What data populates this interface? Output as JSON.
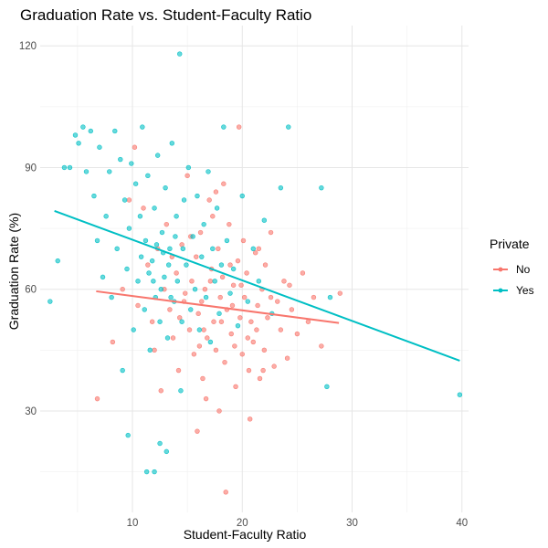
{
  "chart_data": {
    "type": "scatter",
    "title": "Graduation Rate vs. Student-Faculty Ratio",
    "xlabel": "Student-Faculty Ratio",
    "ylabel": "Graduation Rate (%)",
    "xlim": [
      1.6,
      40.6
    ],
    "ylim": [
      5,
      125
    ],
    "x_ticks": [
      10,
      20,
      30,
      40
    ],
    "y_ticks": [
      30,
      60,
      90,
      120
    ],
    "x_tick_labels": [
      "10",
      "20",
      "30",
      "40"
    ],
    "y_tick_labels": [
      "30",
      "60",
      "90",
      "120"
    ],
    "grid": true,
    "legend": {
      "title": "Private",
      "position": "right"
    },
    "series": [
      {
        "name": "No",
        "color": "#F8766D",
        "trend": {
          "x": [
            6.7,
            28.8
          ],
          "y": [
            59.5,
            51.7
          ]
        },
        "points": [
          [
            6.8,
            33
          ],
          [
            8.2,
            47
          ],
          [
            9.1,
            60
          ],
          [
            9.7,
            82
          ],
          [
            10.2,
            95
          ],
          [
            10.5,
            56
          ],
          [
            11.0,
            80
          ],
          [
            11.4,
            66
          ],
          [
            11.8,
            52
          ],
          [
            12.0,
            45
          ],
          [
            12.3,
            70
          ],
          [
            12.6,
            35
          ],
          [
            12.9,
            60
          ],
          [
            13.1,
            76
          ],
          [
            13.4,
            55
          ],
          [
            13.7,
            48
          ],
          [
            14.0,
            64
          ],
          [
            14.2,
            40
          ],
          [
            14.5,
            71
          ],
          [
            14.7,
            57
          ],
          [
            15.0,
            88
          ],
          [
            15.2,
            50
          ],
          [
            15.4,
            62
          ],
          [
            15.6,
            44
          ],
          [
            15.8,
            68
          ],
          [
            16.0,
            54
          ],
          [
            16.2,
            74
          ],
          [
            16.4,
            38
          ],
          [
            16.6,
            60
          ],
          [
            16.8,
            48
          ],
          [
            17.0,
            82
          ],
          [
            17.2,
            65
          ],
          [
            17.4,
            52
          ],
          [
            17.6,
            45
          ],
          [
            17.8,
            70
          ],
          [
            18.0,
            58
          ],
          [
            18.2,
            63
          ],
          [
            18.4,
            42
          ],
          [
            18.6,
            55
          ],
          [
            18.8,
            76
          ],
          [
            19.0,
            49
          ],
          [
            19.2,
            61
          ],
          [
            19.4,
            36
          ],
          [
            19.6,
            67
          ],
          [
            19.8,
            53
          ],
          [
            20.0,
            44
          ],
          [
            20.2,
            58
          ],
          [
            20.4,
            64
          ],
          [
            20.6,
            40
          ],
          [
            20.8,
            52
          ],
          [
            21.0,
            47
          ],
          [
            21.2,
            69
          ],
          [
            21.4,
            56
          ],
          [
            21.6,
            38
          ],
          [
            21.8,
            60
          ],
          [
            22.0,
            45
          ],
          [
            22.3,
            53
          ],
          [
            22.6,
            74
          ],
          [
            22.9,
            41
          ],
          [
            23.2,
            57
          ],
          [
            23.5,
            50
          ],
          [
            23.8,
            62
          ],
          [
            24.1,
            43
          ],
          [
            24.5,
            55
          ],
          [
            25.0,
            49
          ],
          [
            25.5,
            64
          ],
          [
            26.0,
            52
          ],
          [
            26.5,
            58
          ],
          [
            27.2,
            46
          ],
          [
            28.9,
            59
          ],
          [
            16.1,
            46
          ],
          [
            17.3,
            78
          ],
          [
            18.5,
            10
          ],
          [
            19.7,
            100
          ],
          [
            15.9,
            25
          ],
          [
            16.7,
            33
          ],
          [
            17.9,
            30
          ],
          [
            18.3,
            86
          ],
          [
            20.7,
            28
          ],
          [
            21.9,
            40
          ],
          [
            13.6,
            68
          ],
          [
            14.8,
            59
          ],
          [
            16.3,
            57
          ],
          [
            17.1,
            62
          ],
          [
            18.9,
            66
          ],
          [
            19.3,
            46
          ],
          [
            20.1,
            72
          ],
          [
            21.3,
            50
          ],
          [
            22.1,
            66
          ],
          [
            19.1,
            56
          ],
          [
            17.6,
            84
          ],
          [
            20.5,
            48
          ],
          [
            22.6,
            58
          ],
          [
            24.3,
            61
          ],
          [
            15.3,
            73
          ],
          [
            16.5,
            50
          ],
          [
            18.1,
            52
          ],
          [
            19.9,
            61
          ],
          [
            21.5,
            70
          ],
          [
            14.3,
            53
          ]
        ]
      },
      {
        "name": "Yes",
        "color": "#00BFC4",
        "trend": {
          "x": [
            2.9,
            39.8
          ],
          "y": [
            79.3,
            42.4
          ]
        },
        "points": [
          [
            2.5,
            57
          ],
          [
            3.2,
            67
          ],
          [
            3.8,
            90
          ],
          [
            4.3,
            90
          ],
          [
            4.8,
            98
          ],
          [
            5.1,
            96
          ],
          [
            5.5,
            100
          ],
          [
            5.8,
            89
          ],
          [
            6.2,
            99
          ],
          [
            6.5,
            83
          ],
          [
            6.8,
            72
          ],
          [
            7.0,
            95
          ],
          [
            7.3,
            63
          ],
          [
            7.6,
            78
          ],
          [
            7.9,
            89
          ],
          [
            8.1,
            58
          ],
          [
            8.4,
            99
          ],
          [
            8.6,
            70
          ],
          [
            8.9,
            92
          ],
          [
            9.1,
            40
          ],
          [
            9.3,
            82
          ],
          [
            9.5,
            65
          ],
          [
            9.7,
            75
          ],
          [
            9.9,
            91
          ],
          [
            10.1,
            50
          ],
          [
            10.3,
            86
          ],
          [
            10.5,
            62
          ],
          [
            10.7,
            78
          ],
          [
            10.9,
            100
          ],
          [
            11.1,
            55
          ],
          [
            11.2,
            72
          ],
          [
            11.4,
            88
          ],
          [
            11.6,
            45
          ],
          [
            11.8,
            67
          ],
          [
            12.0,
            80
          ],
          [
            12.1,
            58
          ],
          [
            12.3,
            93
          ],
          [
            12.5,
            52
          ],
          [
            12.7,
            74
          ],
          [
            12.9,
            63
          ],
          [
            13.0,
            85
          ],
          [
            13.2,
            48
          ],
          [
            13.4,
            70
          ],
          [
            13.6,
            96
          ],
          [
            13.8,
            57
          ],
          [
            14.0,
            78
          ],
          [
            14.1,
            62
          ],
          [
            14.3,
            118
          ],
          [
            14.5,
            52
          ],
          [
            14.7,
            82
          ],
          [
            14.9,
            66
          ],
          [
            15.1,
            90
          ],
          [
            15.3,
            55
          ],
          [
            15.5,
            73
          ],
          [
            15.7,
            60
          ],
          [
            15.9,
            83
          ],
          [
            16.1,
            50
          ],
          [
            16.3,
            68
          ],
          [
            16.5,
            76
          ],
          [
            16.7,
            58
          ],
          [
            16.9,
            89
          ],
          [
            17.1,
            47
          ],
          [
            17.3,
            70
          ],
          [
            17.5,
            62
          ],
          [
            17.7,
            80
          ],
          [
            17.9,
            54
          ],
          [
            18.1,
            66
          ],
          [
            18.3,
            100
          ],
          [
            18.6,
            72
          ],
          [
            18.9,
            59
          ],
          [
            19.2,
            65
          ],
          [
            19.6,
            51
          ],
          [
            20.0,
            83
          ],
          [
            20.5,
            57
          ],
          [
            21.0,
            70
          ],
          [
            21.5,
            62
          ],
          [
            22.0,
            77
          ],
          [
            22.7,
            54
          ],
          [
            23.5,
            85
          ],
          [
            24.2,
            100
          ],
          [
            27.2,
            85
          ],
          [
            27.7,
            36
          ],
          [
            28.0,
            58
          ],
          [
            39.8,
            34
          ],
          [
            9.6,
            24
          ],
          [
            11.3,
            15
          ],
          [
            12.0,
            15
          ],
          [
            12.5,
            22
          ],
          [
            13.1,
            20
          ],
          [
            14.4,
            35
          ],
          [
            10.8,
            68
          ],
          [
            11.5,
            64
          ],
          [
            12.2,
            71
          ],
          [
            12.8,
            69
          ],
          [
            13.3,
            66
          ],
          [
            13.9,
            73
          ],
          [
            14.6,
            70
          ],
          [
            11.9,
            62
          ],
          [
            12.6,
            60
          ],
          [
            13.5,
            58
          ]
        ]
      }
    ]
  }
}
